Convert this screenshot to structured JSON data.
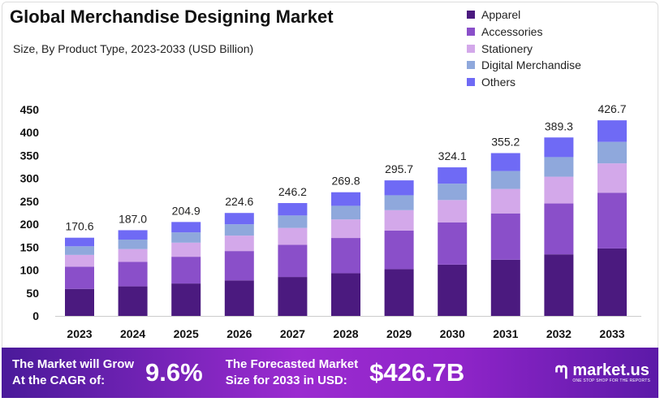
{
  "chart_data": {
    "type": "bar",
    "stacked": true,
    "title": "Global Merchandise Designing Market",
    "subtitle": "Size, By Product Type, 2023-2033 (USD Billion)",
    "categories": [
      "2023",
      "2024",
      "2025",
      "2026",
      "2027",
      "2028",
      "2029",
      "2030",
      "2031",
      "2032",
      "2033"
    ],
    "totals": [
      "170.6",
      "187.0",
      "204.9",
      "224.6",
      "246.2",
      "269.8",
      "295.7",
      "324.1",
      "355.2",
      "389.3",
      "426.7"
    ],
    "series": [
      {
        "name": "Apparel",
        "color": "#4b1a7f",
        "values": [
          58.9,
          64.5,
          70.7,
          77.5,
          84.9,
          93.1,
          102.0,
          111.8,
          122.5,
          134.3,
          147.2
        ]
      },
      {
        "name": "Accessories",
        "color": "#8a4fc9",
        "values": [
          48.6,
          53.3,
          58.4,
          64.0,
          70.2,
          76.9,
          84.3,
          92.4,
          101.2,
          111.0,
          121.6
        ]
      },
      {
        "name": "Stationery",
        "color": "#d3a8ea",
        "values": [
          25.6,
          28.1,
          30.7,
          33.7,
          36.9,
          40.5,
          44.4,
          48.6,
          53.3,
          58.4,
          64.0
        ]
      },
      {
        "name": "Digital Merchandise",
        "color": "#8fa8dc",
        "values": [
          18.8,
          20.6,
          22.5,
          24.7,
          27.1,
          29.7,
          32.5,
          35.7,
          39.1,
          42.8,
          46.9
        ]
      },
      {
        "name": "Others",
        "color": "#6f6af5",
        "values": [
          18.7,
          20.5,
          22.6,
          24.7,
          27.1,
          29.6,
          32.5,
          35.6,
          39.1,
          42.8,
          47.0
        ]
      }
    ],
    "yticks": [
      "0",
      "50",
      "100",
      "150",
      "200",
      "250",
      "300",
      "350",
      "400",
      "450"
    ],
    "ylim": [
      0,
      450
    ],
    "grid": false,
    "legend": "top-right"
  },
  "footer": {
    "cagr_label_1": "The Market will Grow",
    "cagr_label_2": "At the CAGR of:",
    "cagr_value": "9.6%",
    "forecast_label_1": "The Forecasted Market",
    "forecast_label_2": "Size for 2033 in USD:",
    "forecast_value": "$426.7B",
    "brand": "market.us",
    "brand_tagline": "ONE STOP SHOP FOR THE REPORTS"
  }
}
